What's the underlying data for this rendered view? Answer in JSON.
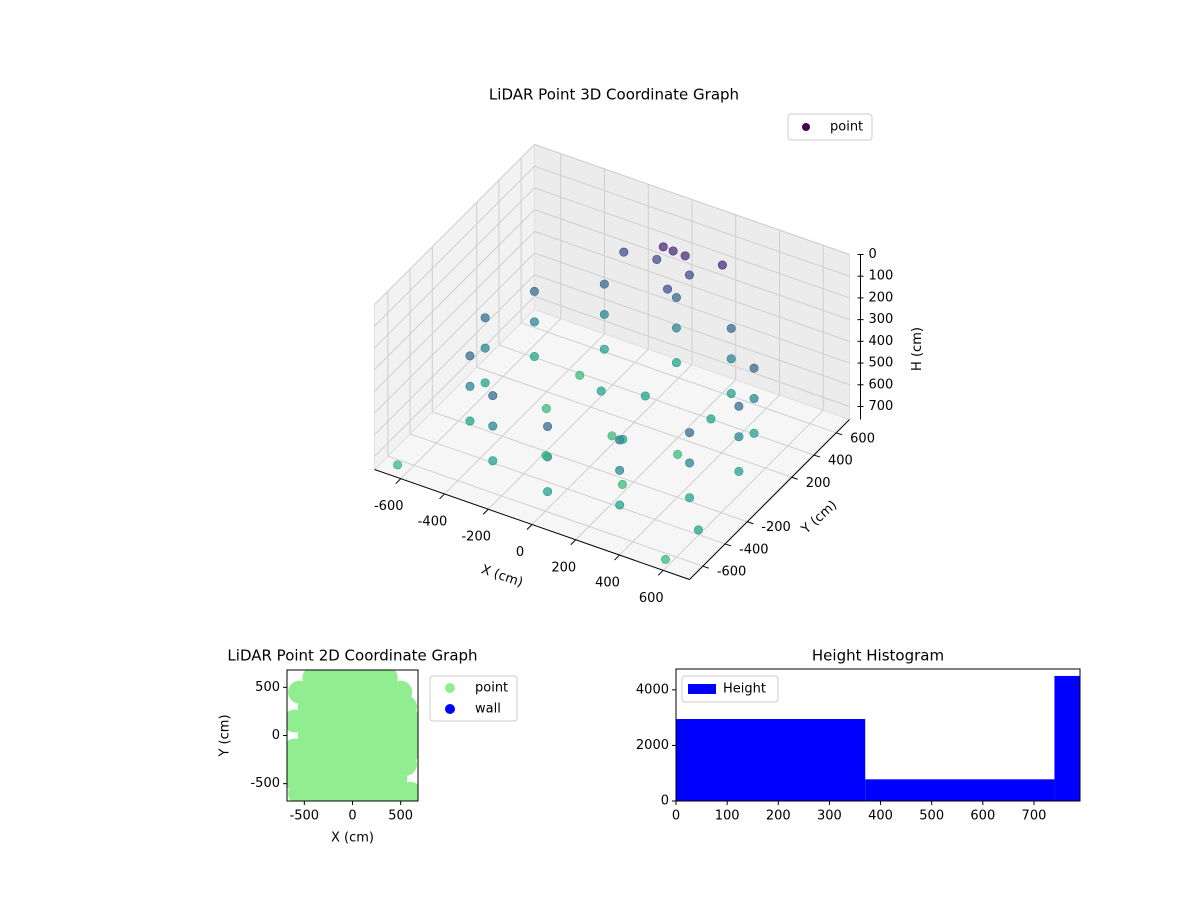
{
  "chart_data": [
    {
      "type": "scatter3d",
      "title": "LiDAR Point 3D Coordinate Graph",
      "xlabel": "X (cm)",
      "ylabel": "Y (cm)",
      "zlabel": "H (cm)",
      "xlim": [
        -720,
        720
      ],
      "ylim": [
        -720,
        720
      ],
      "zlim": [
        0,
        760
      ],
      "zinvert": true,
      "xticks": [
        -600,
        -400,
        -200,
        0,
        200,
        400,
        600
      ],
      "yticks": [
        -600,
        -400,
        -200,
        200,
        400,
        600
      ],
      "zticks": [
        0,
        100,
        200,
        300,
        400,
        500,
        600,
        700
      ],
      "grid": true,
      "legend": "upper right",
      "series": [
        {
          "name": "point",
          "color": "#440154",
          "colormap": "viridis",
          "x": [
            580,
            580,
            580,
            502,
            502,
            502,
            290,
            290,
            290,
            0,
            0,
            0,
            -290,
            -290,
            -290,
            -502,
            -502,
            -502,
            -580,
            -580,
            -580,
            -502,
            -502,
            -502,
            -290,
            -290,
            -290,
            0,
            0,
            0,
            290,
            290,
            290,
            502,
            502,
            502,
            0,
            50,
            -40,
            100,
            0,
            -200,
            200,
            -100,
            -300,
            0,
            300,
            -150,
            200,
            0,
            -300,
            300,
            100,
            -100,
            -650,
            600,
            700
          ],
          "y": [
            0,
            0,
            0,
            290,
            290,
            290,
            502,
            502,
            502,
            580,
            580,
            580,
            502,
            502,
            502,
            290,
            290,
            290,
            0,
            0,
            0,
            -290,
            -290,
            -290,
            -502,
            -502,
            -502,
            -580,
            -580,
            -580,
            -502,
            -502,
            -502,
            -290,
            -290,
            -290,
            550,
            560,
            540,
            500,
            500,
            500,
            600,
            600,
            0,
            0,
            0,
            -300,
            -300,
            300,
            300,
            300,
            -100,
            100,
            -650,
            -700,
            -600
          ],
          "z": [
            380,
            520,
            680,
            380,
            520,
            680,
            380,
            520,
            680,
            380,
            520,
            680,
            380,
            520,
            680,
            380,
            520,
            680,
            380,
            520,
            680,
            380,
            520,
            680,
            380,
            520,
            680,
            380,
            520,
            680,
            380,
            520,
            680,
            380,
            520,
            680,
            150,
            160,
            140,
            200,
            300,
            200,
            170,
            250,
            700,
            720,
            700,
            710,
            720,
            690,
            700,
            690,
            650,
            600,
            750,
            720,
            600
          ]
        }
      ]
    },
    {
      "type": "scatter",
      "title": "LiDAR Point 2D Coordinate Graph",
      "xlabel": "X (cm)",
      "ylabel": "Y (cm)",
      "xlim": [
        -680,
        680
      ],
      "ylim": [
        -680,
        680
      ],
      "xticks": [
        -500,
        0,
        500
      ],
      "yticks": [
        -500,
        0,
        500
      ],
      "legend": "outside right",
      "series": [
        {
          "name": "point",
          "color": "#90ee90",
          "x": [
            -400,
            -250,
            -100,
            50,
            200,
            350,
            -550,
            -400,
            -250,
            -100,
            50,
            200,
            350,
            500,
            -450,
            -300,
            -150,
            0,
            150,
            300,
            450,
            550,
            -600,
            -450,
            -300,
            -150,
            0,
            150,
            300,
            450,
            600,
            -450,
            -300,
            -150,
            0,
            150,
            300,
            450,
            600,
            -600,
            -450,
            -300,
            -150,
            0,
            150,
            300,
            450,
            600,
            -600,
            -450,
            -300,
            -150,
            0,
            150,
            300,
            450,
            550,
            -600,
            -450,
            -300,
            -150,
            0,
            150,
            300,
            450,
            -550,
            -400,
            -250,
            -100,
            50,
            200,
            350,
            500,
            600
          ],
          "y": [
            600,
            600,
            600,
            600,
            600,
            600,
            450,
            450,
            450,
            450,
            450,
            450,
            450,
            450,
            300,
            300,
            300,
            300,
            300,
            300,
            300,
            300,
            150,
            150,
            150,
            150,
            150,
            150,
            150,
            150,
            150,
            0,
            0,
            0,
            0,
            0,
            0,
            0,
            0,
            -150,
            -150,
            -150,
            -150,
            -150,
            -150,
            -150,
            -150,
            -150,
            -300,
            -300,
            -300,
            -300,
            -300,
            -300,
            -300,
            -300,
            -300,
            -450,
            -450,
            -450,
            -450,
            -450,
            -450,
            -450,
            -450,
            -600,
            -600,
            -600,
            -600,
            -600,
            -600,
            -600,
            -600,
            -600
          ]
        },
        {
          "name": "wall",
          "color": "#0000ff",
          "x": [],
          "y": []
        }
      ]
    },
    {
      "type": "histogram",
      "title": "Height Histogram",
      "bins": [
        0,
        370,
        740,
        790
      ],
      "values": [
        2950,
        780,
        4500
      ],
      "series_name": "Height",
      "color": "#0000ff",
      "xlim": [
        0,
        790
      ],
      "ylim": [
        0,
        4750
      ],
      "xticks": [
        0,
        100,
        200,
        300,
        400,
        500,
        600,
        700
      ],
      "yticks": [
        0,
        2000,
        4000
      ],
      "legend": "upper left"
    }
  ]
}
